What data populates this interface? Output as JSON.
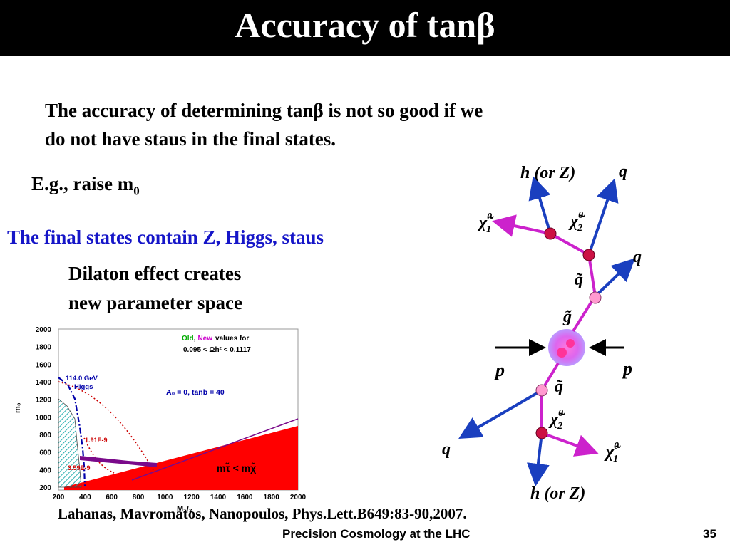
{
  "slide": {
    "title": "Accuracy of tanβ",
    "intro_line1": "The accuracy of determining tanβ is not so good if we",
    "intro_line2": "do not have staus in the  final states.",
    "eg_text": "E.g., raise m",
    "eg_sub": "0",
    "final_states": "The final states contain Z, Higgs, staus",
    "dilaton_line1": "Dilaton effect creates",
    "dilaton_line2": "new parameter space",
    "reference": "Lahanas, Mavromatos, Nanopoulos, Phys.Lett.B649:83-90,2007.",
    "footer": "Precision Cosmology at the LHC",
    "page_number": "35"
  },
  "chart_data": {
    "type": "area",
    "ylabel": "m₀",
    "xlabel": "M₁/₂",
    "x_ticks": [
      "200",
      "400",
      "600",
      "800",
      "1000",
      "1200",
      "1400",
      "1600",
      "1800",
      "2000"
    ],
    "y_ticks": [
      "2000",
      "1800",
      "1600",
      "1400",
      "1200",
      "1000",
      "800",
      "600",
      "400",
      "200"
    ],
    "xlim": [
      200,
      2000
    ],
    "ylim": [
      200,
      2000
    ],
    "legend": {
      "old": "Old",
      "sep": ",",
      "new": "New",
      "values_for": "values for",
      "range": "0.095 <  Ωh² < 0.1117"
    },
    "annotations": {
      "higgs_mass": "114.0 GeV",
      "higgs_label": "Higgs",
      "params": "A₀ = 0, tanb = 40",
      "value_a": "1.91E-9",
      "value_b": "3.59E-9",
      "stau_region": "mτ̃ < mχ̃"
    },
    "colors": {
      "stau_region": "#ff0000",
      "higgs_line": "#0000aa",
      "relic_band": "#7a0a8a",
      "hatch": "#00a0a0",
      "dotted": "#cc0000"
    }
  },
  "diagram": {
    "labels": {
      "h_top": "h (or Z)",
      "q_top": "q",
      "chi1_top": "χ̃",
      "chi1_top_sup": "0",
      "chi1_top_sub": "1",
      "chi2_top": "χ̃",
      "chi2_top_sup": "0",
      "chi2_top_sub": "2",
      "q_right": "q",
      "squark_top": "q̃",
      "gluino": "g̃",
      "p_left": "p",
      "p_right": "p",
      "squark_bottom": "q̃",
      "chi2_bottom": "χ̃",
      "chi2_bottom_sup": "0",
      "chi2_bottom_sub": "2",
      "q_left": "q",
      "chi1_bottom": "χ̃",
      "chi1_bottom_sup": "0",
      "chi1_bottom_sub": "1",
      "h_bottom": "h (or Z)"
    },
    "colors": {
      "susy_line": "#cc22cc",
      "sm_line": "#1a3fbf",
      "vertex": "#cc1144",
      "vertex_light": "#ff9ad0",
      "beam": "#000000"
    }
  }
}
